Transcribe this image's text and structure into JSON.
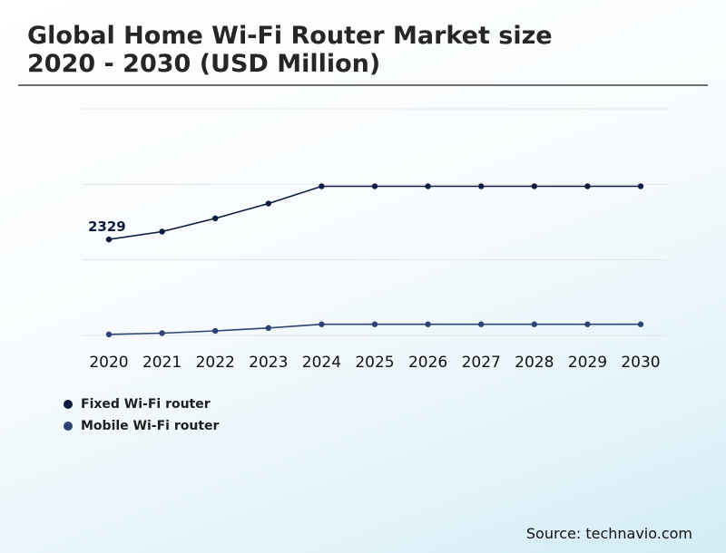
{
  "title_line1": "Global Home Wi-Fi Router Market size",
  "title_line2": "2020 - 2030 (USD Million)",
  "source": "Source: technavio.com",
  "chart_data": {
    "type": "line",
    "x": [
      "2020",
      "2021",
      "2022",
      "2023",
      "2024",
      "2025",
      "2026",
      "2027",
      "2028",
      "2029",
      "2030"
    ],
    "ylim": [
      0,
      5500
    ],
    "grid": true,
    "legend_position": "bottom-left",
    "series": [
      {
        "name": "Fixed Wi-Fi router",
        "color": "#0d1b3e",
        "values": [
          2329,
          2520,
          2840,
          3200,
          3620,
          3620,
          3620,
          3620,
          3620,
          3620,
          3620
        ]
      },
      {
        "name": "Mobile Wi-Fi router",
        "color": "#2e4373",
        "values": [
          25,
          55,
          110,
          180,
          270,
          270,
          270,
          270,
          270,
          270,
          270
        ]
      }
    ],
    "annotations": [
      {
        "series": 0,
        "index": 0,
        "text": "2329"
      }
    ]
  }
}
